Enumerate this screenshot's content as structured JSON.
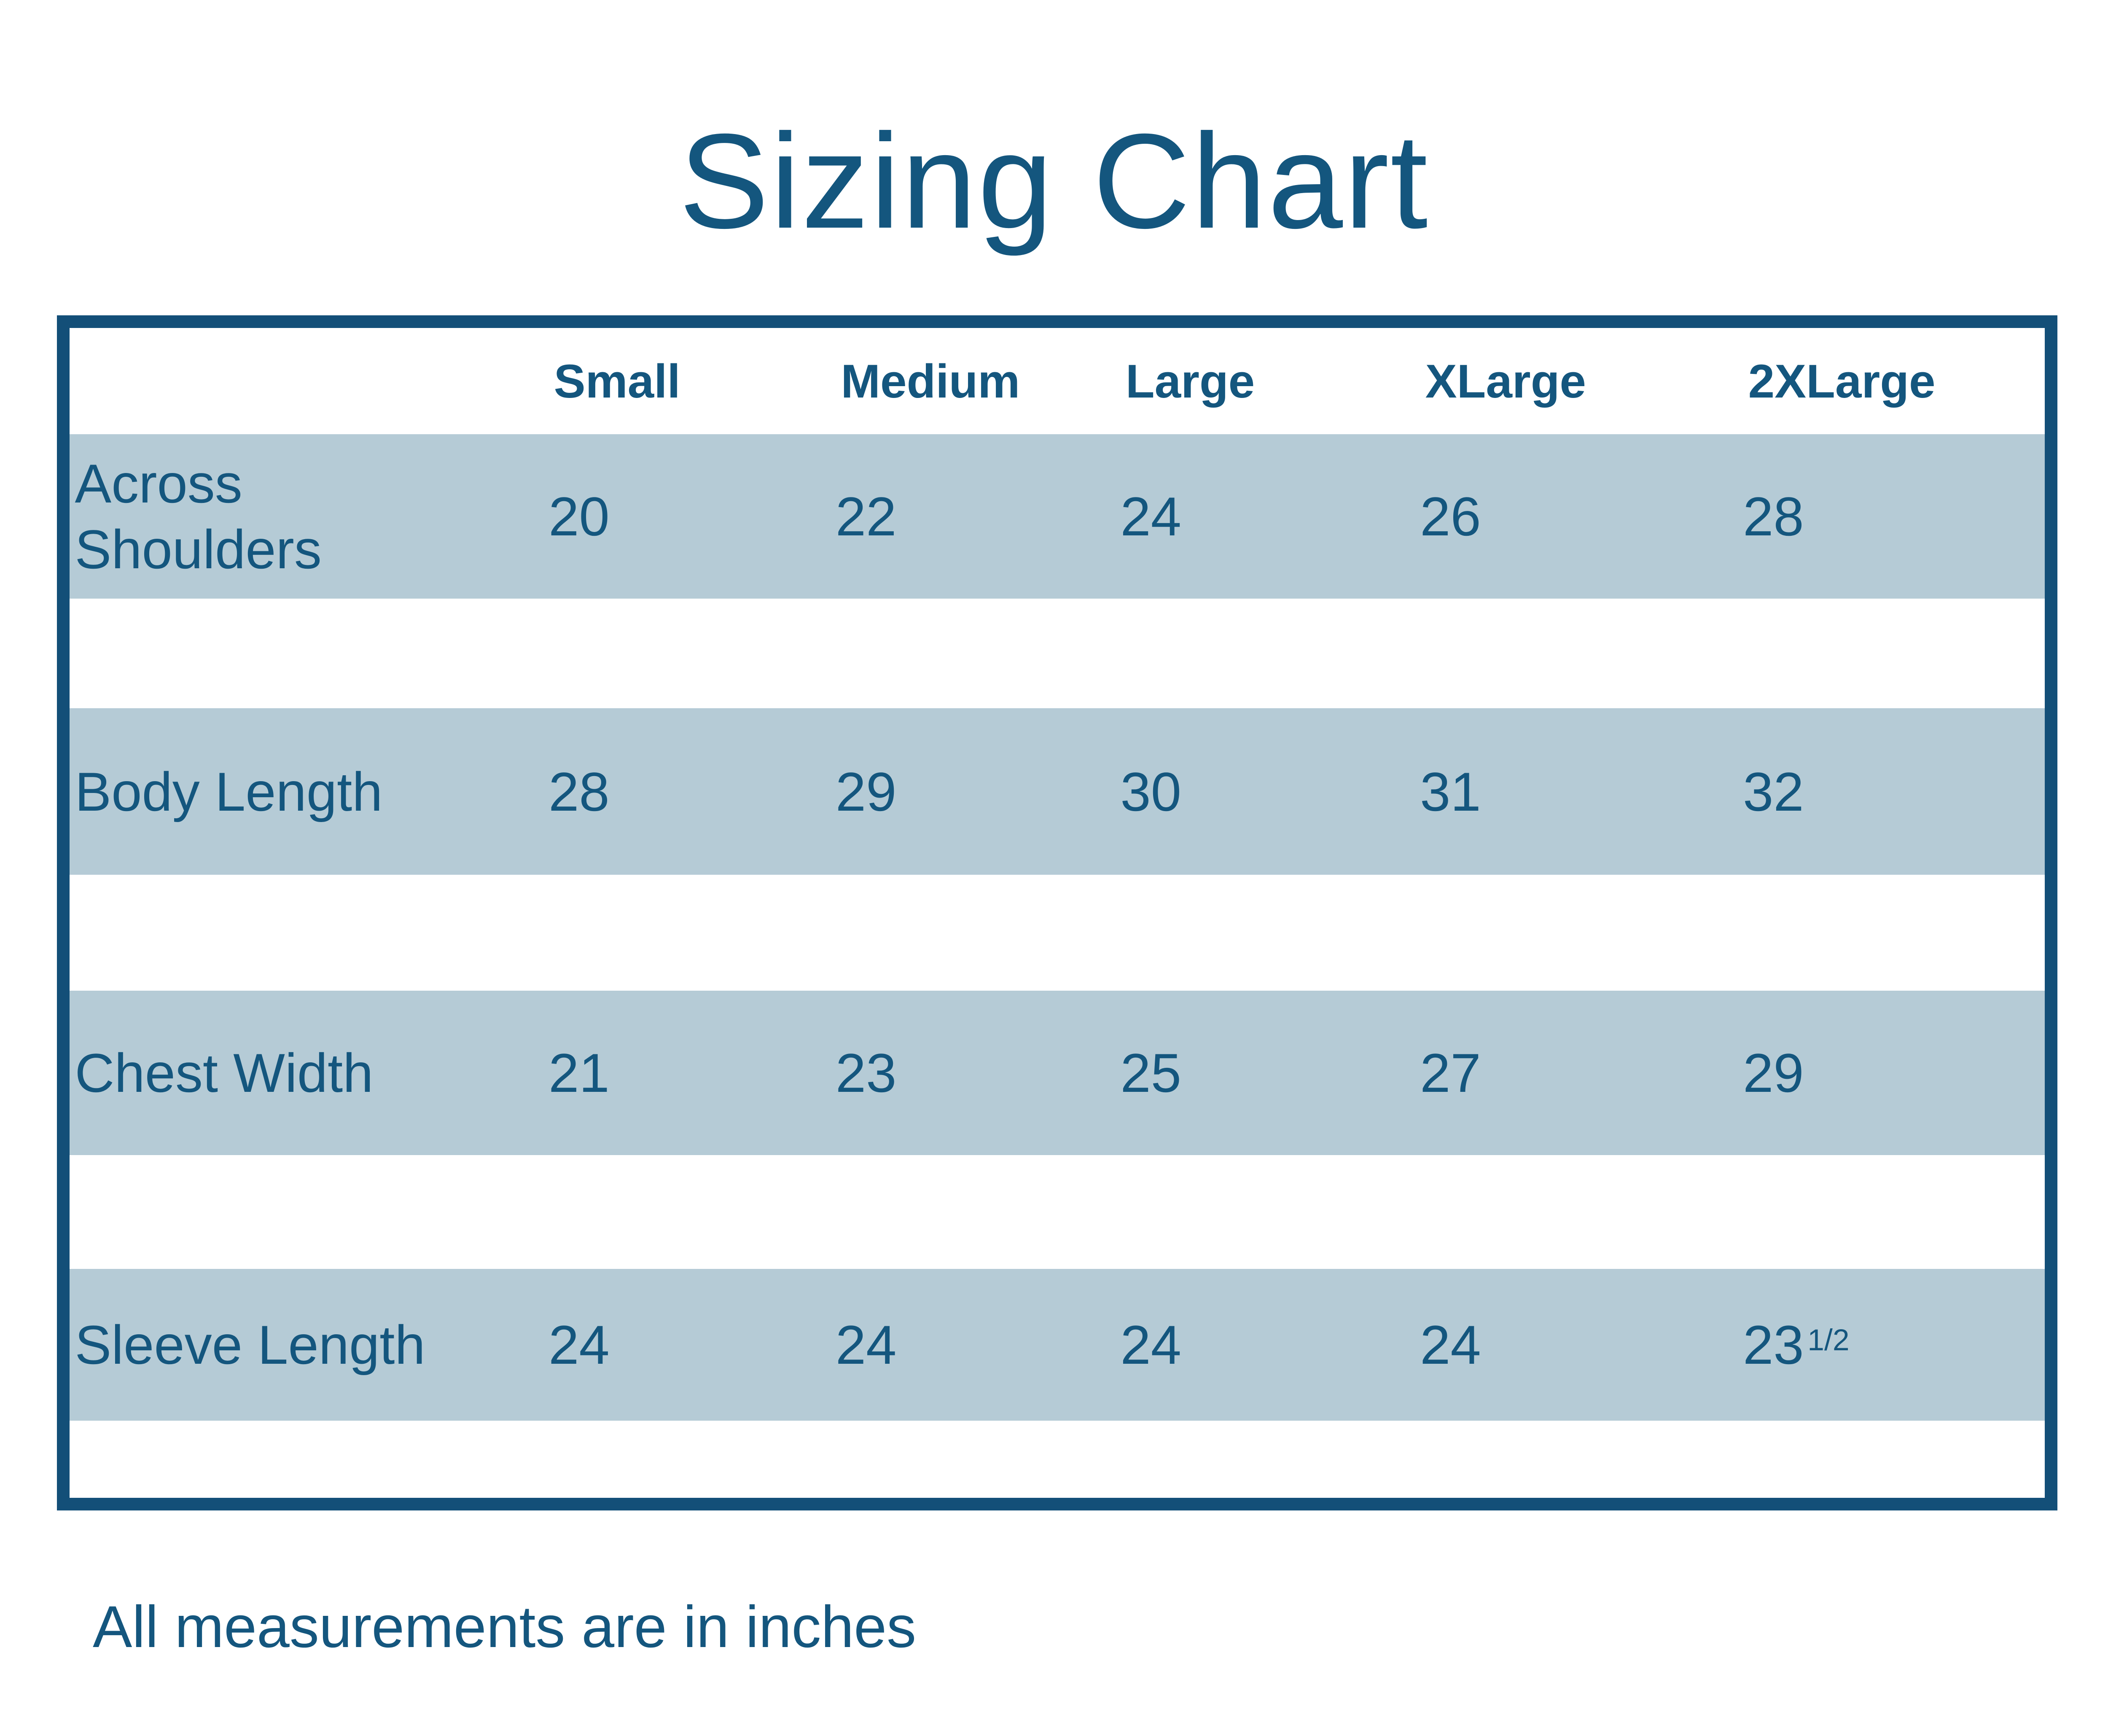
{
  "page": {
    "title": "Sizing Chart",
    "footnote": "All measurements are in inches"
  },
  "colors": {
    "navy_text": "#14567E",
    "table_border": "#134F78",
    "row_band_blue": "#B5CBD6",
    "background": "#FFFFFF"
  },
  "sizes": [
    "Small",
    "Medium",
    "Large",
    "XLarge",
    "2XLarge"
  ],
  "measurements": [
    {
      "label": "Across Shoulders",
      "values": [
        "20",
        "22",
        "24",
        "26",
        "28"
      ]
    },
    {
      "label": "Body Length",
      "values": [
        "28",
        "29",
        "30",
        "31",
        "32"
      ]
    },
    {
      "label": "Chest Width",
      "values": [
        "21",
        "23",
        "25",
        "27",
        "29"
      ]
    },
    {
      "label": "Sleeve Length",
      "values": [
        "24",
        "24",
        "24",
        "24",
        "23 1/2"
      ]
    }
  ],
  "chart_data": {
    "type": "table",
    "title": "Sizing Chart",
    "columns": [
      "Small",
      "Medium",
      "Large",
      "XLarge",
      "2XLarge"
    ],
    "rows": [
      {
        "label": "Across Shoulders",
        "values": [
          20,
          22,
          24,
          26,
          28
        ]
      },
      {
        "label": "Body Length",
        "values": [
          28,
          29,
          30,
          31,
          32
        ]
      },
      {
        "label": "Chest Width",
        "values": [
          21,
          23,
          25,
          27,
          29
        ]
      },
      {
        "label": "Sleeve Length",
        "values": [
          24,
          24,
          24,
          24,
          23.5
        ]
      }
    ],
    "units": "inches",
    "footnote": "All measurements are in inches",
    "layout": {
      "row_style": "alternating blue bands with white spacers",
      "header_position": "top"
    }
  }
}
